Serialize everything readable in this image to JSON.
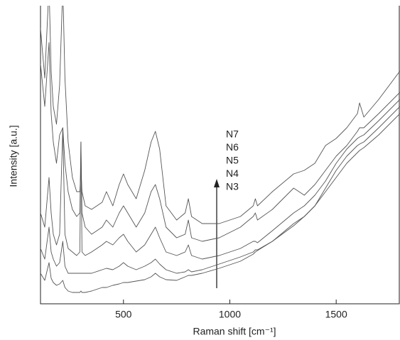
{
  "chart_data": {
    "type": "line",
    "x_label": "Raman shift [cm⁻¹]",
    "y_label": "Intensity [a.u.]",
    "annotations": [
      "N7",
      "N6",
      "N5",
      "N4",
      "N3"
    ],
    "x": [
      110,
      130,
      150,
      160,
      170,
      185,
      200,
      215,
      225,
      240,
      260,
      280,
      295,
      300,
      305,
      320,
      350,
      400,
      420,
      450,
      480,
      500,
      520,
      560,
      600,
      630,
      650,
      670,
      700,
      750,
      790,
      805,
      820,
      870,
      950,
      1050,
      1110,
      1120,
      1130,
      1200,
      1300,
      1350,
      1400,
      1450,
      1500,
      1550,
      1600,
      1610,
      1630,
      1700,
      1800
    ],
    "series": [
      {
        "name": "N7",
        "color": "#555555",
        "values": [
          388,
          318,
          448,
          328,
          278,
          253,
          308,
          448,
          318,
          228,
          178,
          158,
          158,
          188,
          158,
          138,
          133,
          143,
          158,
          138,
          168,
          183,
          168,
          148,
          188,
          228,
          243,
          218,
          138,
          118,
          128,
          148,
          123,
          113,
          113,
          123,
          138,
          148,
          138,
          158,
          183,
          188,
          198,
          223,
          233,
          248,
          268,
          283,
          263,
          288,
          328
        ]
      },
      {
        "name": "N6",
        "color": "#555555",
        "values": [
          338,
          278,
          368,
          268,
          228,
          198,
          238,
          248,
          198,
          158,
          133,
          123,
          128,
          228,
          128,
          108,
          98,
          108,
          118,
          108,
          128,
          138,
          128,
          108,
          128,
          158,
          168,
          148,
          108,
          93,
          98,
          118,
          93,
          88,
          93,
          108,
          123,
          128,
          118,
          133,
          163,
          153,
          168,
          188,
          208,
          223,
          243,
          248,
          248,
          268,
          298
        ]
      },
      {
        "name": "N5",
        "color": "#555555",
        "values": [
          128,
          108,
          178,
          128,
          98,
          83,
          98,
          248,
          98,
          78,
          73,
          68,
          73,
          228,
          73,
          68,
          73,
          83,
          88,
          83,
          93,
          98,
          88,
          73,
          83,
          98,
          108,
          93,
          73,
          68,
          73,
          83,
          68,
          63,
          68,
          78,
          88,
          88,
          86,
          103,
          128,
          138,
          153,
          173,
          198,
          218,
          233,
          235,
          238,
          258,
          288
        ]
      },
      {
        "name": "N4",
        "color": "#555555",
        "values": [
          78,
          63,
          108,
          73,
          63,
          53,
          58,
          88,
          53,
          43,
          43,
          43,
          43,
          43,
          43,
          43,
          43,
          48,
          50,
          48,
          53,
          58,
          53,
          48,
          53,
          58,
          63,
          56,
          48,
          43,
          45,
          48,
          45,
          48,
          56,
          66,
          73,
          76,
          76,
          88,
          113,
          123,
          138,
          163,
          188,
          208,
          223,
          225,
          228,
          248,
          278
        ]
      },
      {
        "name": "N3",
        "color": "#555555",
        "values": [
          43,
          33,
          58,
          36,
          30,
          26,
          28,
          33,
          23,
          18,
          16,
          16,
          16,
          18,
          16,
          16,
          18,
          23,
          23,
          26,
          28,
          30,
          30,
          32,
          34,
          38,
          43,
          38,
          34,
          33,
          38,
          40,
          40,
          43,
          50,
          60,
          70,
          73,
          75,
          88,
          110,
          123,
          138,
          158,
          178,
          198,
          213,
          216,
          220,
          238,
          268
        ]
      }
    ],
    "xlim": [
      110,
      1800
    ],
    "ylim": [
      0,
      420
    ],
    "xticks": [
      500,
      1000,
      1500
    ]
  }
}
